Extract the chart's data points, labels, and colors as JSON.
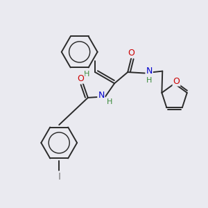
{
  "bg_color": "#eaeaf0",
  "bond_color": "#2a2a2a",
  "bond_width": 1.4,
  "atom_colors": {
    "O": "#cc0000",
    "N": "#0000cc",
    "I": "#7a7a7a",
    "H": "#3a8a3a",
    "C": "#2a2a2a"
  },
  "font_size": 8.5,
  "figsize": [
    3.0,
    3.0
  ],
  "dpi": 100
}
